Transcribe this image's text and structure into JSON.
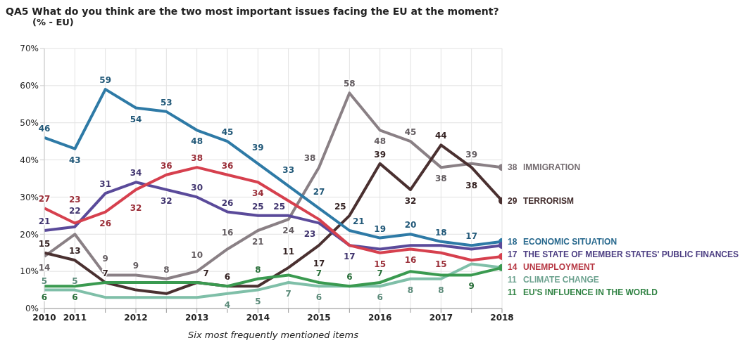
{
  "chart_data": {
    "type": "line",
    "title": "QA5  What do you think are the two most important issues facing the EU at the moment?",
    "subtitle": "(% - EU)",
    "xlabel": "Six most frequently mentioned items",
    "categories": [
      "2010",
      "2011",
      null,
      "2012",
      null,
      "2013",
      null,
      "2014",
      null,
      "2015",
      null,
      "2016",
      null,
      "2017",
      null,
      "2018"
    ],
    "ylim": [
      0,
      70
    ],
    "yticks": [
      {
        "value": 0,
        "label": "0%"
      },
      {
        "value": 10,
        "label": "10%"
      },
      {
        "value": 20,
        "label": "20%"
      },
      {
        "value": 30,
        "label": "30%"
      },
      {
        "value": 40,
        "label": "40%"
      },
      {
        "value": 50,
        "label": "50%"
      },
      {
        "value": 60,
        "label": "60%"
      },
      {
        "value": 70,
        "label": "70%"
      }
    ],
    "grid": true,
    "legend": false,
    "marker": "none",
    "line_style": "solid",
    "series": [
      {
        "name": "IMMIGRATION",
        "color": "#8a8085",
        "values": [
          14,
          20,
          9,
          9,
          8,
          10,
          16,
          21,
          24,
          38,
          58,
          48,
          45,
          38,
          39,
          38
        ],
        "value_labels": [
          "14",
          null,
          "9",
          "9",
          "8",
          "10",
          "16",
          "21",
          "24",
          "38",
          "58",
          "48",
          "45",
          "38",
          "39",
          "38"
        ]
      },
      {
        "name": "TERRORISM",
        "color": "#4a3030",
        "values": [
          15,
          13,
          7,
          5,
          4,
          7,
          6,
          6,
          11,
          17,
          25,
          39,
          32,
          44,
          38,
          29
        ],
        "value_labels": [
          "15",
          "13",
          "7",
          null,
          null,
          "7",
          "6",
          null,
          "11",
          "17",
          "25",
          "39",
          "32",
          "44",
          "38",
          "29"
        ]
      },
      {
        "name": "ECONOMIC SITUATION",
        "color": "#2e7aa6",
        "values": [
          46,
          43,
          59,
          54,
          53,
          48,
          45,
          39,
          33,
          27,
          21,
          19,
          20,
          18,
          17,
          18
        ],
        "value_labels": [
          "46",
          "43",
          "59",
          "54",
          "53",
          "48",
          "45",
          "39",
          "33",
          "27",
          "21",
          "19",
          "20",
          "18",
          "17",
          "18"
        ]
      },
      {
        "name": "THE STATE OF MEMBER STATES' PUBLIC FINANCES",
        "color": "#5a4a9a",
        "values": [
          21,
          22,
          31,
          34,
          32,
          30,
          26,
          25,
          25,
          23,
          17,
          16,
          17,
          17,
          16,
          17
        ],
        "value_labels": [
          "21",
          "22",
          "31",
          "34",
          "32",
          "30",
          "26",
          "25",
          "25",
          "23",
          "17",
          null,
          null,
          null,
          null,
          "17"
        ]
      },
      {
        "name": "UNEMPLOYMENT",
        "color": "#d6404e",
        "values": [
          27,
          23,
          26,
          32,
          36,
          38,
          36,
          34,
          29,
          24,
          17,
          15,
          16,
          15,
          13,
          14
        ],
        "value_labels": [
          "27",
          "23",
          "26",
          "32",
          "36",
          "38",
          "36",
          "34",
          null,
          null,
          null,
          "15",
          "16",
          "15",
          null,
          "14"
        ]
      },
      {
        "name": "CLIMATE CHANGE",
        "color": "#7fbfa8",
        "values": [
          5,
          5,
          3,
          3,
          3,
          3,
          4,
          5,
          7,
          6,
          6,
          6,
          8,
          8,
          12,
          11
        ],
        "value_labels": [
          "5",
          "5",
          null,
          null,
          null,
          null,
          "4",
          "5",
          "7",
          "6",
          null,
          "6",
          "8",
          "8",
          null,
          "11"
        ]
      },
      {
        "name": "EU'S INFLUENCE IN THE WORLD",
        "color": "#3a9a50",
        "values": [
          6,
          6,
          7,
          7,
          7,
          7,
          6,
          8,
          9,
          7,
          6,
          7,
          10,
          9,
          9,
          11
        ],
        "value_labels": [
          "6",
          "6",
          null,
          null,
          null,
          null,
          null,
          "8",
          null,
          "7",
          "6",
          "7",
          null,
          null,
          "9",
          "11"
        ]
      }
    ]
  }
}
